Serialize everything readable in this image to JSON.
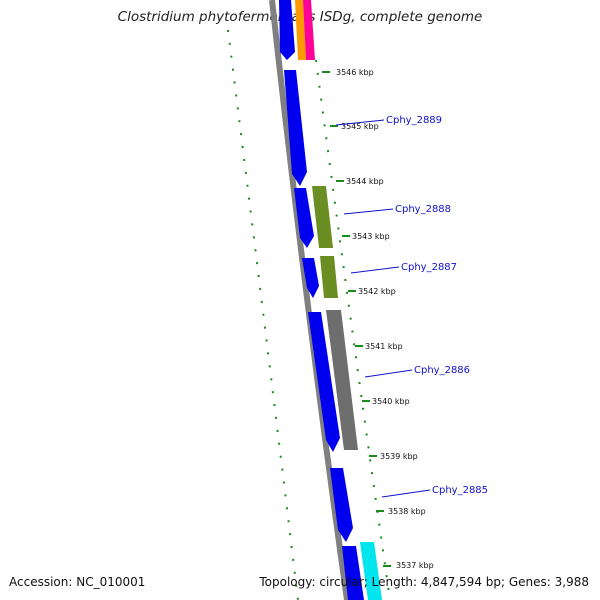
{
  "title": "Clostridium phytofermentans ISDg, complete genome",
  "footer": {
    "accession": "Accession: NC_010001",
    "summary": "Topology: circular; Length: 4,847,594 bp; Genes: 3,988"
  },
  "kbp_ticks": [
    "3546 kbp",
    "3545 kbp",
    "3544 kbp",
    "3543 kbp",
    "3542 kbp",
    "3541 kbp",
    "3540 kbp",
    "3539 kbp",
    "3538 kbp",
    "3537 kbp"
  ],
  "gene_labels": [
    "Cphy_2889",
    "Cphy_2888",
    "Cphy_2887",
    "Cphy_2886",
    "Cphy_2885"
  ],
  "colors": {
    "backbone": "#808080",
    "cds_forward": "#0000ee",
    "olive": "#6b8e23",
    "gray_feature": "#6e6e6e",
    "orange": "#ff9900",
    "magenta": "#ff0099",
    "cyan": "#00e5ee",
    "gc_dots": "#1a8a1a",
    "label_line": "#1010cc"
  }
}
